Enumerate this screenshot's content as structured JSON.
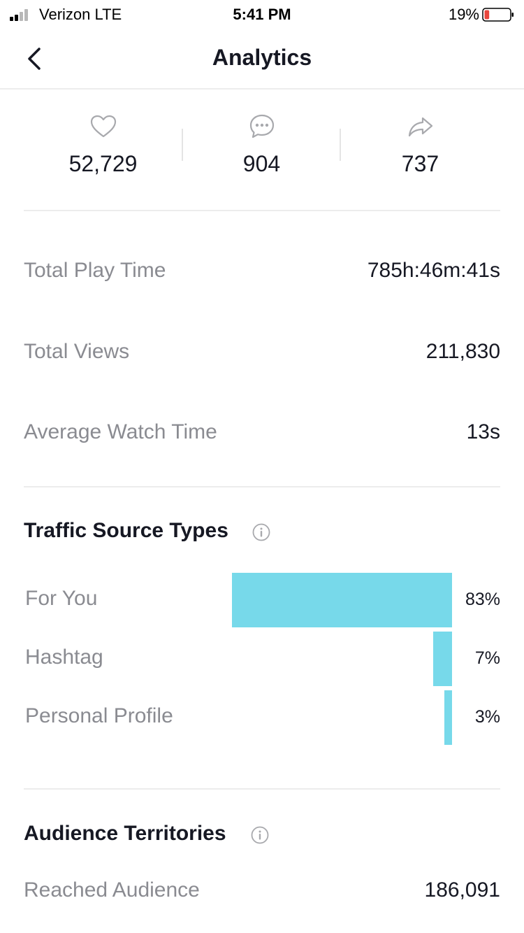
{
  "status_bar": {
    "carrier": "Verizon  LTE",
    "time": "5:41 PM",
    "battery_percent": "19%",
    "battery_level": 0.19,
    "battery_color": "#e8463c"
  },
  "nav": {
    "title": "Analytics",
    "back_icon": "chevron-left-icon"
  },
  "engagement": {
    "likes": {
      "icon": "heart-icon",
      "value": "52,729"
    },
    "comments": {
      "icon": "comment-icon",
      "value": "904"
    },
    "shares": {
      "icon": "share-icon",
      "value": "737"
    }
  },
  "metrics": {
    "play_time": {
      "label": "Total Play Time",
      "value": "785h:46m:41s"
    },
    "views": {
      "label": "Total Views",
      "value": "211,830"
    },
    "watch_time": {
      "label": "Average Watch Time",
      "value": "13s"
    }
  },
  "traffic": {
    "title": "Traffic Source Types",
    "bar_color": "#77d9ea",
    "sources": [
      {
        "label": "For You",
        "percent_label": "83%",
        "percent": 83
      },
      {
        "label": "Hashtag",
        "percent_label": "7%",
        "percent": 7
      },
      {
        "label": "Personal Profile",
        "percent_label": "3%",
        "percent": 3
      }
    ]
  },
  "audience": {
    "title": "Audience Territories",
    "reached_label": "Reached Audience",
    "reached_value": "186,091"
  }
}
